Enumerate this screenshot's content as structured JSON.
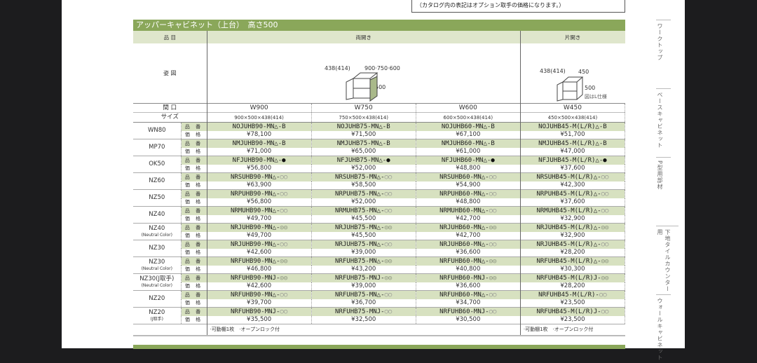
{
  "note": "（カタログ内の表記はオプション取手の価格になります。）",
  "title": "アッパーキャビネット（上台）　高さ500",
  "header": {
    "item_label": "品 目",
    "double": "両開き",
    "single": "片開き",
    "figure_label": "姿 図",
    "opening_label": "間 口",
    "size_label": "サイズ",
    "code_label": "品 番",
    "price_label": "価 格"
  },
  "figure": {
    "double_depth": "438(414)",
    "double_width": "900·750·600",
    "double_height": "500",
    "single_depth": "438(414)",
    "single_width": "450",
    "single_height": "500",
    "single_note": "図はL仕様",
    "door_color": "#a9b98a"
  },
  "widths": [
    "W900",
    "W750",
    "W600",
    "W450"
  ],
  "sizes": [
    "900×500×438(414)",
    "750×500×438(414)",
    "600×500×438(414)",
    "450×500×438(414)"
  ],
  "rows": [
    {
      "color": "WN80",
      "sub": "",
      "mark": "B",
      "style": "plain",
      "codes": [
        "NOJUHB90-MN△-",
        "NOJUHB75-MN△-",
        "NOJUHB60-MN△-",
        "NOJUHB45-M(L/R)△-"
      ],
      "prices": [
        "¥78,100",
        "¥71,500",
        "¥67,100",
        "¥51,700"
      ]
    },
    {
      "color": "MP70",
      "sub": "",
      "mark": "B",
      "style": "plain",
      "codes": [
        "NMJUHB90-MN△-",
        "NMJUHB75-MN△-",
        "NMJUHB60-MN△-",
        "NMJUHB45-M(L/R)△-"
      ],
      "prices": [
        "¥71,000",
        "¥65,000",
        "¥61,000",
        "¥47,000"
      ]
    },
    {
      "color": "OK50",
      "sub": "",
      "mark": "●",
      "style": "fill",
      "codes": [
        "NFJUHB90-MN△-",
        "NFJUHB75-MN△-",
        "NFJUHB60-MN△-",
        "NFJUHB45-M(L/R)△-"
      ],
      "prices": [
        "¥56,800",
        "¥52,000",
        "¥48,800",
        "¥37,600"
      ]
    },
    {
      "color": "NZ60",
      "sub": "",
      "mark": "○○",
      "style": "outline",
      "codes": [
        "NRSUHB90-MN△-",
        "NRSUHB75-MN△-",
        "NRSUHB60-MN△-",
        "NRSUHB45-M(L/R)△-"
      ],
      "prices": [
        "¥63,900",
        "¥58,500",
        "¥54,900",
        "¥42,300"
      ]
    },
    {
      "color": "NZ50",
      "sub": "",
      "mark": "○○",
      "style": "outline",
      "codes": [
        "NRPUHB90-MN△-",
        "NRPUHB75-MN△-",
        "NRPUHB60-MN△-",
        "NRPUHB45-M(L/R)△-"
      ],
      "prices": [
        "¥56,800",
        "¥52,000",
        "¥48,800",
        "¥37,600"
      ]
    },
    {
      "color": "NZ40",
      "sub": "",
      "mark": "○○",
      "style": "outline",
      "codes": [
        "NRMUHB90-MN△-",
        "NRMUHB75-MN△-",
        "NRMUHB60-MN△-",
        "NRMUHB45-M(L/R)△-"
      ],
      "prices": [
        "¥49,700",
        "¥45,500",
        "¥42,700",
        "¥32,900"
      ]
    },
    {
      "color": "NZ40",
      "sub": "(Neutral Color)",
      "mark": "◎◎",
      "style": "bold",
      "codes": [
        "NRJUHB90-MN△-",
        "NRJUHB75-MN△-",
        "NRJUHB60-MN△-",
        "NRJUHB45-M(L/R)△-"
      ],
      "prices": [
        "¥49,700",
        "¥45,500",
        "¥42,700",
        "¥32,900"
      ]
    },
    {
      "color": "NZ30",
      "sub": "",
      "mark": "○○",
      "style": "outline",
      "codes": [
        "NRJUHB90-MN△-",
        "NRJUHB75-MN△-",
        "NRJUHB60-MN△-",
        "NRJUHB45-M(L/R)△-"
      ],
      "prices": [
        "¥42,600",
        "¥39,000",
        "¥36,600",
        "¥28,200"
      ]
    },
    {
      "color": "NZ30",
      "sub": "(Neutral Color)",
      "mark": "◎◎",
      "style": "bold",
      "codes": [
        "NRFUHB90-MN△-",
        "NRFUHB75-MN△-",
        "NRFUHB60-MN△-",
        "NRFUHB45-M(L/R)△-"
      ],
      "prices": [
        "¥46,800",
        "¥43,200",
        "¥40,800",
        "¥30,300"
      ]
    },
    {
      "color": "NZ30(J取手)",
      "sub": "(Neutral Color)",
      "mark": "◎◎",
      "style": "bold",
      "codes": [
        "NRFUHB90-MNJ-",
        "NRFUHB75-MNJ-",
        "NRFUHB60-MNJ-",
        "NRFUHB45-M(L/R)J-"
      ],
      "prices": [
        "¥42,600",
        "¥39,000",
        "¥36,600",
        "¥28,200"
      ]
    },
    {
      "color": "NZ20",
      "sub": "",
      "mark": "○○",
      "style": "outline",
      "codes": [
        "NRFUHB90-MN△-",
        "NRFUHB75-MN△-",
        "NRFUHB60-MN△-",
        "NRFUHB45-M(L/R)-"
      ],
      "prices": [
        "¥39,700",
        "¥36,700",
        "¥34,700",
        "¥23,500"
      ]
    },
    {
      "color": "NZ20",
      "sub": "(J取手)",
      "mark": "○○",
      "style": "outline",
      "codes": [
        "NRFUHB90-MNJ-",
        "NRFUHB75-MNJ-",
        "NRFUHB60-MNJ-",
        "NRFUHB45-M(L/R)J-"
      ],
      "prices": [
        "¥35,500",
        "¥32,500",
        "¥30,500",
        "¥23,500"
      ]
    }
  ],
  "footnote_double": "·可動棚1枚　·オープンロック付",
  "footnote_single": "·可動棚1枚　·オープンロック付",
  "side_tabs": [
    "ワークトップ",
    "ベースキャビネット",
    "P型用部材",
    "下地タイルカウンター用",
    "ウォールキャビネット"
  ]
}
